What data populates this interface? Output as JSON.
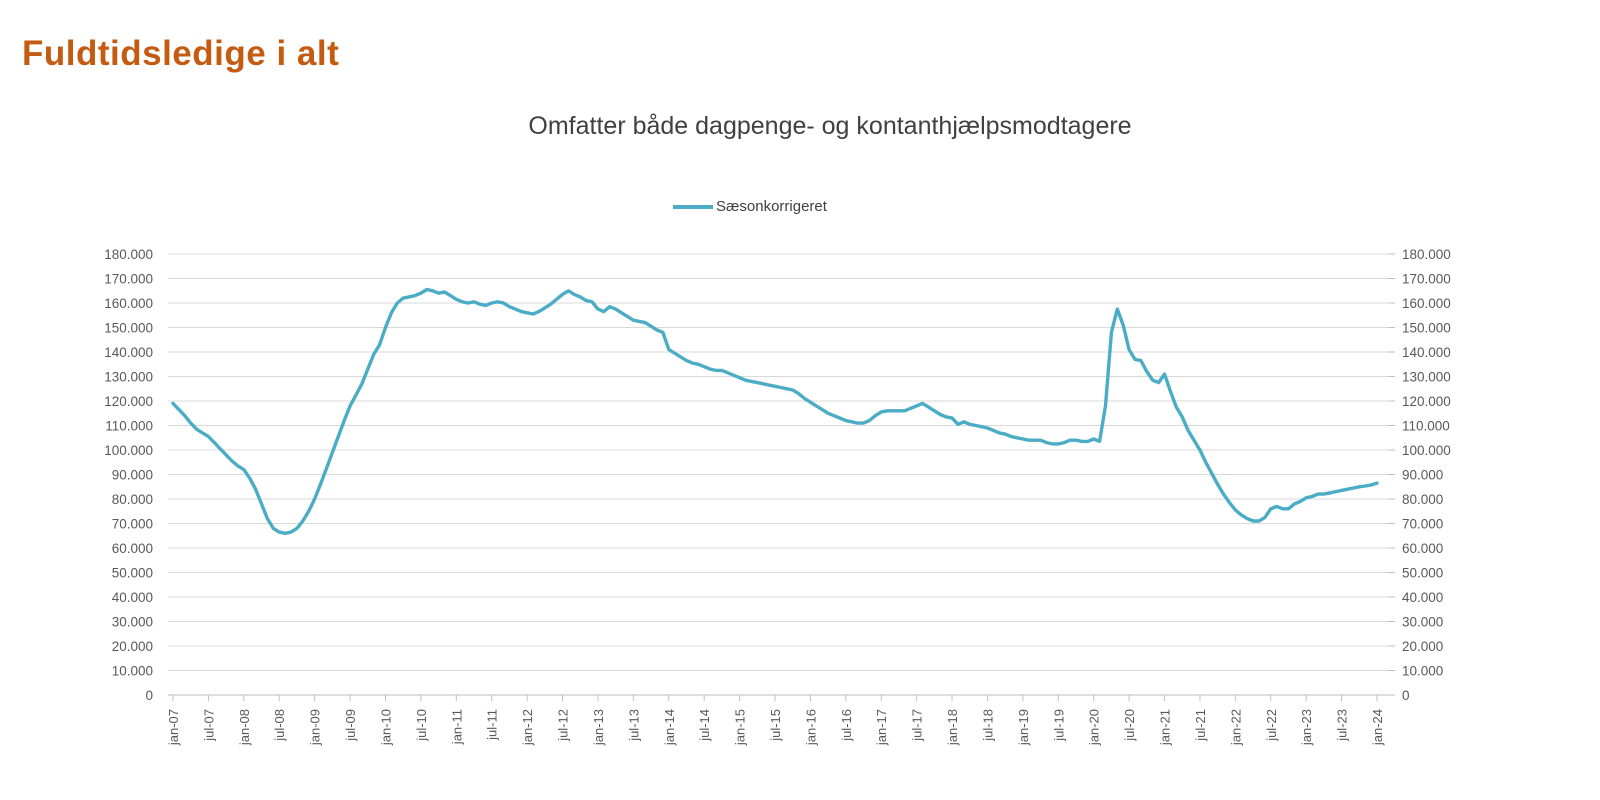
{
  "header": {
    "title": "Fuldtidsledige i alt",
    "title_color": "#C55A11"
  },
  "chart": {
    "title": "Omfatter både dagpenge- og kontanthjælpsmodtagere",
    "legend": {
      "label": "Sæsonkorrigeret",
      "line_color": "#4BACC6"
    }
  },
  "chart_data": {
    "type": "line",
    "title": "Omfatter både dagpenge- og kontanthjælpsmodtagere",
    "xlabel": "",
    "ylabel": "",
    "ylim": [
      0,
      180000
    ],
    "y_step": 10000,
    "grid": "horizontal",
    "legend_position": "top",
    "x_frequency": "monthly",
    "x_start": "jan-07",
    "x_end": "jan-24",
    "x_tick_labels": [
      "jan-07",
      "jul-07",
      "jan-08",
      "jul-08",
      "jan-09",
      "jul-09",
      "jan-10",
      "jul-10",
      "jan-11",
      "jul-11",
      "jan-12",
      "jul-12",
      "jan-13",
      "jul-13",
      "jan-14",
      "jul-14",
      "jan-15",
      "jul-15",
      "jan-16",
      "jul-16",
      "jan-17",
      "jul-17",
      "jan-18",
      "jul-18",
      "jan-19",
      "jul-19",
      "jan-20",
      "jul-20",
      "jan-21",
      "jul-21",
      "jan-22",
      "jul-22",
      "jan-23",
      "jul-23",
      "jan-24"
    ],
    "y_tick_labels": [
      "0",
      "10.000",
      "20.000",
      "30.000",
      "40.000",
      "50.000",
      "60.000",
      "70.000",
      "80.000",
      "90.000",
      "100.000",
      "110.000",
      "120.000",
      "130.000",
      "140.000",
      "150.000",
      "160.000",
      "170.000",
      "180.000"
    ],
    "series": [
      {
        "name": "Sæsonkorrigeret",
        "color": "#4BACC6",
        "values": [
          119000,
          116500,
          114000,
          111000,
          108500,
          107000,
          105500,
          103000,
          100500,
          98000,
          95500,
          93500,
          92000,
          88500,
          84000,
          78000,
          72000,
          68000,
          66500,
          66000,
          66500,
          68000,
          71000,
          75000,
          80000,
          86000,
          92500,
          99000,
          105500,
          112000,
          118000,
          122500,
          127000,
          133000,
          139000,
          143000,
          150000,
          156000,
          160000,
          162000,
          162500,
          163000,
          164000,
          165500,
          165000,
          164000,
          164500,
          163000,
          161500,
          160500,
          160000,
          160500,
          159500,
          159000,
          160000,
          160500,
          160000,
          158500,
          157500,
          156500,
          156000,
          155500,
          156500,
          158000,
          159500,
          161500,
          163500,
          165000,
          163500,
          162500,
          161000,
          160500,
          157500,
          156500,
          158500,
          157500,
          156000,
          154500,
          153000,
          152500,
          152000,
          150500,
          149000,
          148000,
          141000,
          139500,
          138000,
          136500,
          135500,
          135000,
          134000,
          133000,
          132500,
          132500,
          131500,
          130500,
          129500,
          128500,
          128000,
          127500,
          127000,
          126500,
          126000,
          125500,
          125000,
          124500,
          123000,
          121000,
          119500,
          118000,
          116500,
          115000,
          114000,
          113000,
          112000,
          111500,
          111000,
          111000,
          112000,
          114000,
          115500,
          116000,
          116000,
          116000,
          116000,
          117000,
          118000,
          119000,
          117500,
          116000,
          114500,
          113500,
          113000,
          110500,
          111500,
          110500,
          110000,
          109500,
          109000,
          108000,
          107000,
          106500,
          105500,
          105000,
          104500,
          104000,
          104000,
          104000,
          103000,
          102500,
          102500,
          103000,
          104000,
          104000,
          103500,
          103500,
          104500,
          103500,
          118000,
          148000,
          157500,
          151000,
          141000,
          137000,
          136500,
          132000,
          128500,
          127500,
          131000,
          124000,
          117500,
          113500,
          108000,
          104000,
          100000,
          95000,
          90500,
          86000,
          82000,
          78500,
          75500,
          73500,
          72000,
          71000,
          71000,
          72500,
          76000,
          77000,
          76000,
          76000,
          78000,
          79000,
          80500,
          81000,
          82000,
          82000,
          82500,
          83000,
          83500,
          84000,
          84500,
          85000,
          85300,
          85700,
          86500
        ]
      }
    ],
    "colors": {
      "grid": "#D9D9D9",
      "axis_text": "#595959",
      "axis_line": "#BFBFBF"
    }
  }
}
